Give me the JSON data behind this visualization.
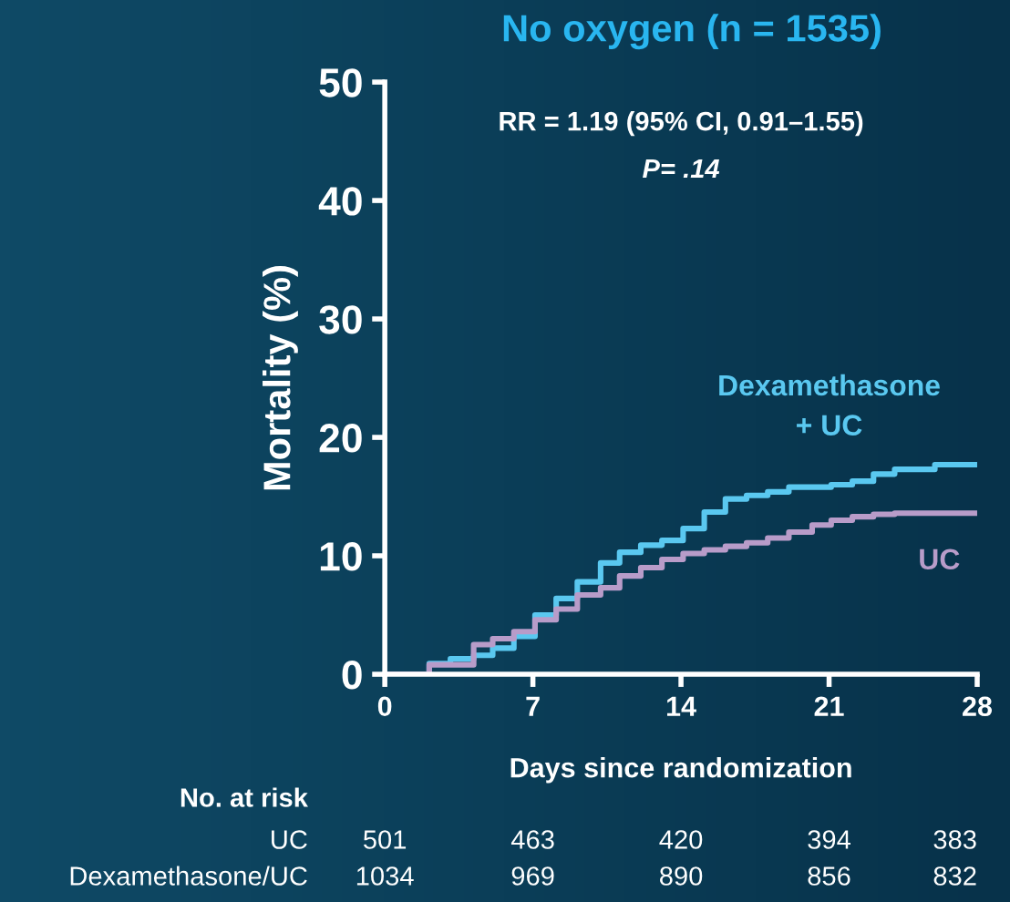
{
  "chart_data": {
    "type": "step",
    "title": "No oxygen (n = 1535)",
    "xlabel": "Days since randomization",
    "ylabel": "Mortality (%)",
    "xlim": [
      0,
      28
    ],
    "xticks": [
      0,
      7,
      14,
      21,
      28
    ],
    "ylim": [
      0,
      50
    ],
    "yticks": [
      0,
      10,
      20,
      30,
      40,
      50
    ],
    "grid": false,
    "legend": false,
    "series": [
      {
        "name": "Dexamethasone\n+ UC",
        "color": "#5ac8f0",
        "x": [
          0,
          2.1,
          3.1,
          4.2,
          5.1,
          6.1,
          7.1,
          8.1,
          9.1,
          10.2,
          11.1,
          12.1,
          13.1,
          14.1,
          15.1,
          16.1,
          17.1,
          18.1,
          19.1,
          21.1,
          22.1,
          23.1,
          24.1,
          26,
          28
        ],
        "values": [
          0,
          0.9,
          1.3,
          1.6,
          2.2,
          3.2,
          5.0,
          6.4,
          7.8,
          9.4,
          10.3,
          10.9,
          11.3,
          12.3,
          13.7,
          14.8,
          15.1,
          15.4,
          15.8,
          16.0,
          16.3,
          16.9,
          17.3,
          17.7,
          17.7
        ]
      },
      {
        "name": "UC",
        "color": "#b89cc9",
        "x": [
          0,
          2.1,
          4.2,
          5.1,
          6.1,
          7.1,
          8.1,
          9.1,
          10.2,
          11.1,
          12.1,
          13.1,
          14.1,
          15.1,
          16.1,
          17.1,
          18.1,
          19.1,
          20.2,
          21.1,
          22.1,
          23.1,
          24.1,
          28
        ],
        "values": [
          0,
          0.8,
          2.5,
          3.0,
          3.6,
          4.6,
          5.5,
          6.7,
          7.3,
          8.3,
          9.0,
          9.7,
          10.2,
          10.5,
          10.8,
          11.1,
          11.5,
          12.0,
          12.6,
          13.0,
          13.3,
          13.5,
          13.6,
          13.6
        ]
      }
    ],
    "annotations": [
      "RR = 1.19 (95% CI, 0.91–1.55)",
      "P= .14",
      "No. at risk",
      "UC",
      "501",
      "463",
      "420",
      "394",
      "383",
      "Dexamethasone/UC",
      "1034",
      "969",
      "890",
      "856",
      "832"
    ]
  }
}
